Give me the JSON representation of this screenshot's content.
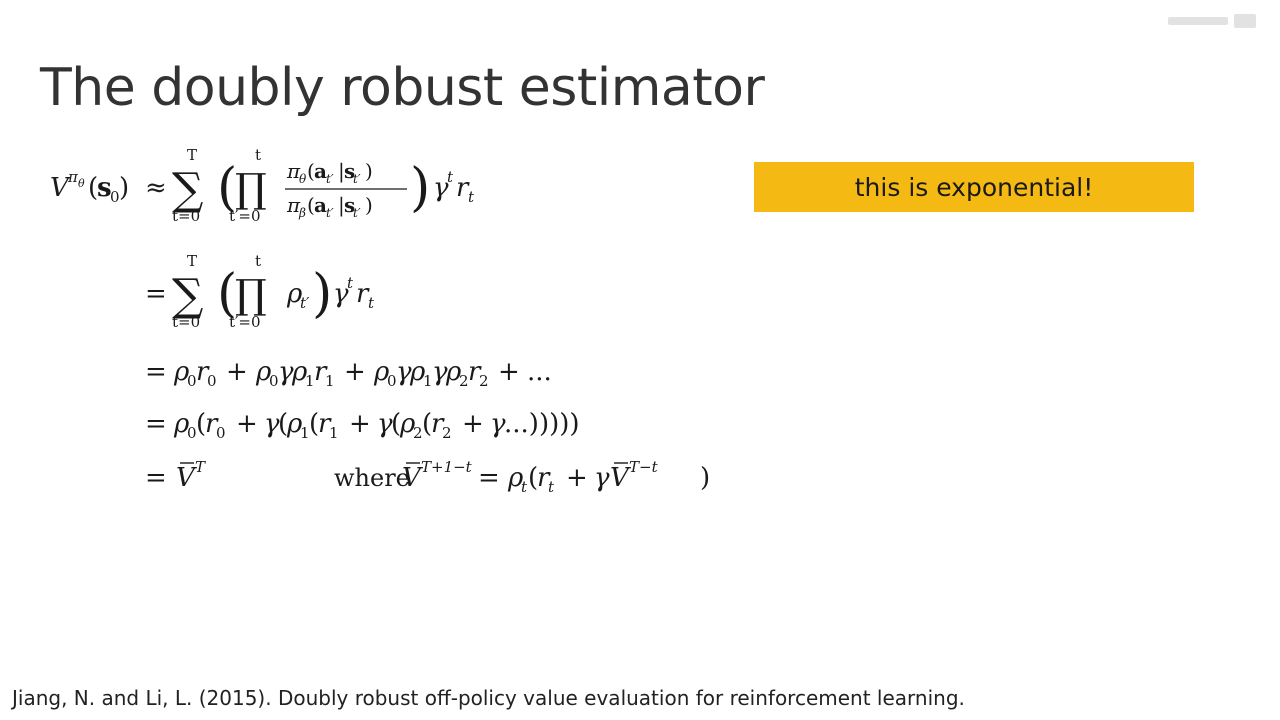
{
  "slide": {
    "title": "The doubly robust estimator",
    "callout": "this is exponential!",
    "citation": "Jiang, N. and Li, L. (2015). Doubly robust off-policy value evaluation for reinforcement learning."
  },
  "equations": {
    "where_word": "where"
  }
}
